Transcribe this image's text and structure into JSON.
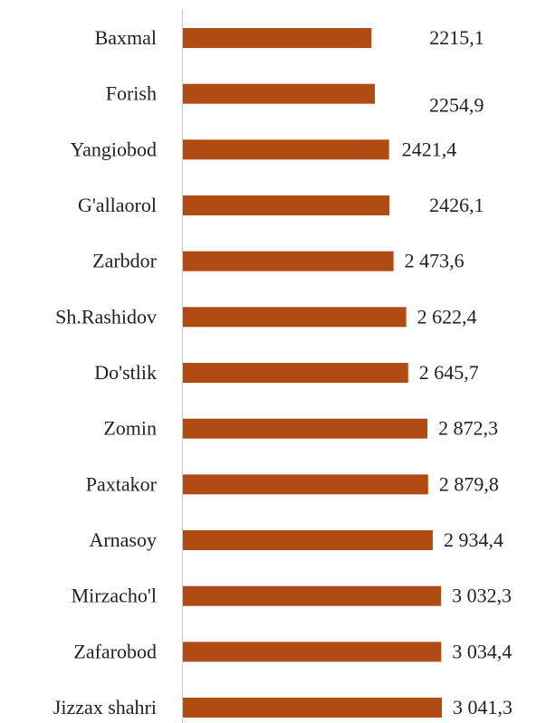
{
  "chart_data": {
    "type": "bar",
    "orientation": "horizontal",
    "color": "#b04c13",
    "categories": [
      "Baxmal",
      "Forish",
      "Yangiobod",
      "G'allaorol",
      "Zarbdor",
      "Sh.Rashidov",
      "Do'stlik",
      "Zomin",
      "Paxtakor",
      "Arnasoy",
      "Mirzacho'l",
      "Zafarobod",
      "Jizzax shahri"
    ],
    "values": [
      2215.1,
      2254.9,
      2421.4,
      2426.1,
      2473.6,
      2622.4,
      2645.7,
      2872.3,
      2879.8,
      2934.4,
      3032.3,
      3034.4,
      3041.3
    ],
    "value_labels": [
      "2215,1",
      "2254,9",
      "2421,4",
      "2426,1",
      "2 473,6",
      "2 622,4",
      "2 645,7",
      "2 872,3",
      "2 879,8",
      "2 934,4",
      "3 032,3",
      "3 034,4",
      "3 041,3"
    ]
  }
}
